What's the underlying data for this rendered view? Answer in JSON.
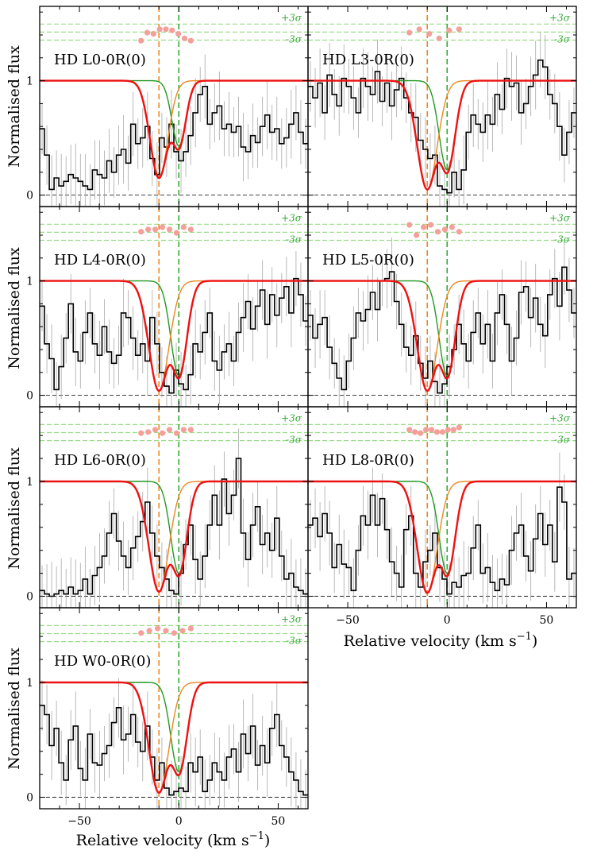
{
  "figure": {
    "y_axis_label": "Normalised flux",
    "x_axis_label": "Relative velocity (km s",
    "x_axis_label_exp": "−1",
    "x_axis_label_close": ")",
    "sigma_plus": "+3σ",
    "sigma_minus": "-3σ",
    "x_tick_labels": [
      "−50",
      "0",
      "50"
    ],
    "y_tick_labels": [
      "0",
      "1"
    ],
    "colors": {
      "histogram": "#000000",
      "error_bars": "#a8a8a8",
      "total_model": "#ee1111",
      "component_1": "#ee8822",
      "component_2": "#229922",
      "marker_line_1": "#ee8822",
      "marker_line_2": "#33aa33",
      "sigma_lines": "#99dd88",
      "residual_points": "#f4a09a"
    }
  },
  "chart_data": [
    {
      "type": "line",
      "title": "HD L0-0R(0)",
      "xlim": [
        -70,
        65
      ],
      "ylim": [
        -0.1,
        1.65
      ],
      "components": [
        {
          "v": -10,
          "depth": 0.85,
          "width": 4.5
        },
        {
          "v": 0,
          "depth": 0.57,
          "width": 3.5
        }
      ],
      "markers": [
        -10,
        0
      ],
      "residuals": [
        0.28,
        0.35,
        0.34,
        0.38,
        0.38,
        0.37,
        0.34,
        0.3,
        0.28
      ],
      "flux": [
        0.58,
        0.35,
        0.05,
        0.15,
        0.08,
        0.12,
        0.18,
        0.15,
        0.12,
        0.08,
        0.05,
        0.22,
        0.18,
        0.15,
        0.3,
        0.2,
        0.35,
        0.4,
        0.28,
        0.62,
        0.45,
        0.5,
        0.6,
        0.32,
        0.18,
        0.5,
        0.42,
        0.62,
        0.38,
        0.3,
        0.38,
        0.52,
        0.72,
        0.88,
        0.95,
        0.62,
        0.72,
        0.78,
        0.58,
        0.62,
        0.55,
        0.6,
        0.42,
        0.38,
        0.52,
        0.46,
        0.6,
        0.7,
        0.55,
        0.58,
        0.45,
        0.5,
        0.62,
        0.72,
        0.55,
        0.45
      ]
    },
    {
      "type": "line",
      "title": "HD L3-0R(0)",
      "xlim": [
        -70,
        65
      ],
      "ylim": [
        -0.1,
        1.65
      ],
      "components": [
        {
          "v": -10,
          "depth": 0.95,
          "width": 5.0
        },
        {
          "v": 0,
          "depth": 0.78,
          "width": 4.0
        }
      ],
      "markers": [
        -10,
        0
      ],
      "residuals": [
        0.35,
        0.38,
        0.34,
        0.3,
        0.37,
        0.38
      ],
      "flux": [
        0.95,
        0.85,
        0.98,
        0.72,
        1.05,
        0.88,
        0.78,
        1.02,
        0.95,
        0.85,
        0.72,
        1.02,
        0.95,
        0.88,
        1.08,
        0.82,
        0.98,
        0.78,
        0.92,
        1.02,
        0.85,
        0.72,
        0.68,
        0.48,
        0.4,
        0.32,
        0.35,
        0.08,
        0.05,
        0.02,
        0.2,
        0.05,
        0.22,
        0.55,
        0.7,
        0.62,
        0.55,
        0.7,
        0.62,
        0.88,
        0.75,
        1.02,
        0.95,
        0.98,
        0.72,
        0.8,
        0.95,
        1.05,
        1.18,
        1.12,
        0.88,
        0.8,
        0.6,
        0.35,
        0.55,
        0.72
      ]
    },
    {
      "type": "line",
      "title": "HD L4-0R(0)",
      "xlim": [
        -70,
        65
      ],
      "ylim": [
        -0.1,
        1.65
      ],
      "components": [
        {
          "v": -10,
          "depth": 0.96,
          "width": 5.0
        },
        {
          "v": 0,
          "depth": 0.83,
          "width": 4.0
        }
      ],
      "markers": [
        -10,
        0
      ],
      "residuals": [
        0.36,
        0.38,
        0.38,
        0.4,
        0.38,
        0.35,
        0.4,
        0.38
      ],
      "flux": [
        0.78,
        0.45,
        0.32,
        0.05,
        0.25,
        0.5,
        0.8,
        0.38,
        0.3,
        0.55,
        0.72,
        0.45,
        0.35,
        0.6,
        0.38,
        0.28,
        0.35,
        0.72,
        0.68,
        0.5,
        0.35,
        0.45,
        0.3,
        0.68,
        0.45,
        0.2,
        0.08,
        0.02,
        0.22,
        0.1,
        0.05,
        0.18,
        0.45,
        0.38,
        0.55,
        0.72,
        0.3,
        0.22,
        0.38,
        0.45,
        0.3,
        0.55,
        0.68,
        0.82,
        0.58,
        0.78,
        0.92,
        0.62,
        0.88,
        0.7,
        0.85,
        0.95,
        0.72,
        1.02,
        0.88,
        0.65
      ]
    },
    {
      "type": "line",
      "title": "HD L5-0R(0)",
      "xlim": [
        -70,
        65
      ],
      "ylim": [
        -0.1,
        1.65
      ],
      "components": [
        {
          "v": -10,
          "depth": 0.96,
          "width": 5.0
        },
        {
          "v": 0,
          "depth": 0.83,
          "width": 4.0
        }
      ],
      "markers": [
        -10,
        0
      ],
      "residuals": [
        0.42,
        0.33,
        0.4,
        0.42,
        0.36,
        0.38,
        0.4,
        0.36
      ],
      "flux": [
        0.7,
        0.5,
        0.62,
        0.68,
        0.42,
        0.28,
        0.15,
        0.05,
        0.3,
        0.5,
        0.72,
        0.65,
        0.75,
        0.9,
        0.75,
        1.0,
        1.02,
        1.08,
        0.82,
        0.62,
        0.42,
        0.35,
        0.52,
        0.28,
        0.15,
        0.3,
        0.12,
        0.02,
        0.1,
        0.25,
        0.4,
        0.62,
        0.45,
        0.3,
        0.55,
        0.72,
        0.45,
        0.62,
        0.3,
        0.72,
        0.88,
        0.62,
        0.3,
        0.5,
        0.9,
        0.95,
        0.68,
        0.85,
        0.62,
        0.52,
        0.88,
        1.02,
        0.78,
        1.12,
        0.92,
        0.72
      ]
    },
    {
      "type": "line",
      "title": "HD L6-0R(0)",
      "xlim": [
        -70,
        65
      ],
      "ylim": [
        -0.1,
        1.65
      ],
      "components": [
        {
          "v": -10,
          "depth": 0.96,
          "width": 5.0
        },
        {
          "v": 0,
          "depth": 0.8,
          "width": 4.0
        }
      ],
      "markers": [
        -10,
        0
      ],
      "residuals": [
        0.35,
        0.36,
        0.38,
        0.35,
        0.38,
        0.35,
        0.38,
        0.38
      ],
      "flux": [
        0.05,
        0.02,
        0.0,
        0.02,
        0.05,
        0.02,
        0.08,
        0.02,
        0.05,
        0.15,
        0.02,
        0.18,
        0.25,
        0.35,
        0.55,
        0.72,
        0.48,
        0.35,
        0.25,
        0.42,
        0.52,
        0.65,
        0.82,
        0.55,
        0.35,
        0.25,
        0.15,
        0.05,
        0.02,
        0.2,
        0.45,
        0.62,
        0.32,
        0.15,
        0.35,
        0.62,
        0.88,
        0.62,
        1.02,
        0.72,
        0.88,
        1.2,
        0.55,
        0.32,
        0.62,
        0.78,
        0.45,
        0.55,
        0.4,
        0.68,
        0.35,
        0.15,
        0.2,
        0.08,
        0.05,
        0.02
      ]
    },
    {
      "type": "line",
      "title": "HD L8-0R(0)",
      "xlim": [
        -70,
        65
      ],
      "ylim": [
        -0.1,
        1.65
      ],
      "components": [
        {
          "v": -10,
          "depth": 0.97,
          "width": 5.0
        },
        {
          "v": 0,
          "depth": 0.8,
          "width": 4.0
        }
      ],
      "markers": [
        -10,
        0
      ],
      "residuals": [
        0.38,
        0.36,
        0.35,
        0.38,
        0.38,
        0.36,
        0.36,
        0.38,
        0.38,
        0.4
      ],
      "flux": [
        0.62,
        0.68,
        0.52,
        0.72,
        0.55,
        0.25,
        0.45,
        0.28,
        0.25,
        0.05,
        0.4,
        0.7,
        0.62,
        0.88,
        0.62,
        0.85,
        0.58,
        0.3,
        0.2,
        0.08,
        0.58,
        0.7,
        0.2,
        0.08,
        0.3,
        0.4,
        0.55,
        0.25,
        0.15,
        0.02,
        0.12,
        0.08,
        0.18,
        0.2,
        0.42,
        0.62,
        0.2,
        0.25,
        0.12,
        0.05,
        0.15,
        0.1,
        0.4,
        0.55,
        0.62,
        0.35,
        0.22,
        0.5,
        0.72,
        0.45,
        0.62,
        0.3,
        0.95,
        0.82,
        0.15,
        0.2
      ]
    },
    {
      "type": "line",
      "title": "HD W0-0R(0)",
      "xlim": [
        -70,
        65
      ],
      "ylim": [
        -0.1,
        1.65
      ],
      "components": [
        {
          "v": -10,
          "depth": 0.96,
          "width": 5.0
        },
        {
          "v": 0,
          "depth": 0.78,
          "width": 4.0
        }
      ],
      "markers": [
        -10,
        0
      ],
      "residuals": [
        0.36,
        0.38,
        0.4,
        0.38,
        0.36,
        0.38,
        0.4
      ],
      "flux": [
        0.8,
        0.72,
        0.45,
        0.6,
        0.3,
        0.15,
        0.5,
        0.62,
        0.25,
        0.15,
        0.55,
        0.3,
        0.28,
        0.38,
        0.45,
        0.65,
        0.78,
        0.5,
        0.55,
        0.72,
        0.48,
        0.4,
        0.62,
        0.35,
        0.15,
        0.3,
        0.08,
        0.02,
        0.05,
        0.08,
        0.05,
        0.3,
        0.22,
        0.35,
        0.05,
        0.15,
        0.3,
        0.22,
        0.15,
        0.35,
        0.42,
        0.22,
        0.55,
        0.38,
        0.62,
        0.28,
        0.45,
        0.3,
        0.6,
        0.72,
        0.45,
        0.35,
        0.22,
        0.15,
        0.05,
        0.02
      ]
    }
  ]
}
